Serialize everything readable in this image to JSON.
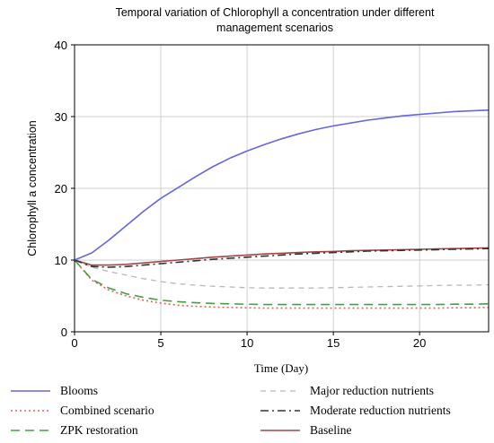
{
  "chart_data": {
    "type": "line",
    "title_line1": "Temporal variation of Chlorophyll  a concentration under different",
    "title_line2": "management scenarios",
    "xlabel": "Time (Day)",
    "ylabel": "Chlorophyll  a concentration",
    "xlim": [
      0,
      24
    ],
    "ylim": [
      0,
      40
    ],
    "xticks": [
      0,
      5,
      10,
      15,
      20
    ],
    "yticks": [
      0,
      10,
      20,
      30,
      40
    ],
    "grid": true,
    "legend_position": "bottom",
    "x": [
      0,
      1,
      2,
      3,
      4,
      5,
      6,
      7,
      8,
      9,
      10,
      11,
      12,
      13,
      14,
      15,
      16,
      17,
      18,
      19,
      20,
      21,
      22,
      23,
      24
    ],
    "series": [
      {
        "name": "Blooms",
        "color": "#6666dd",
        "dash": "solid",
        "values": [
          10,
          11,
          12.8,
          14.8,
          16.8,
          18.6,
          20.1,
          21.6,
          23.0,
          24.2,
          25.2,
          26.1,
          26.9,
          27.6,
          28.2,
          28.7,
          29.1,
          29.5,
          29.8,
          30.1,
          30.3,
          30.5,
          30.7,
          30.8,
          30.9
        ]
      },
      {
        "name": "Combined scenario",
        "color": "#e06060",
        "dash": "dotted",
        "values": [
          10,
          7.2,
          5.8,
          5.0,
          4.4,
          4.0,
          3.7,
          3.55,
          3.45,
          3.4,
          3.35,
          3.3,
          3.3,
          3.3,
          3.3,
          3.3,
          3.3,
          3.3,
          3.3,
          3.3,
          3.3,
          3.3,
          3.35,
          3.35,
          3.4
        ]
      },
      {
        "name": "ZPK restoration",
        "color": "#44a044",
        "dash": "longdash",
        "values": [
          10,
          7.3,
          6.1,
          5.3,
          4.8,
          4.4,
          4.2,
          4.05,
          3.95,
          3.9,
          3.85,
          3.8,
          3.8,
          3.8,
          3.8,
          3.8,
          3.8,
          3.8,
          3.8,
          3.8,
          3.8,
          3.8,
          3.85,
          3.85,
          3.9
        ]
      },
      {
        "name": "Major reduction nutrients",
        "color": "#b8b8b8",
        "dash": "dashed",
        "values": [
          10,
          9.0,
          8.4,
          7.9,
          7.4,
          7.0,
          6.7,
          6.5,
          6.35,
          6.25,
          6.15,
          6.1,
          6.1,
          6.1,
          6.1,
          6.15,
          6.2,
          6.25,
          6.3,
          6.35,
          6.4,
          6.45,
          6.5,
          6.5,
          6.55
        ]
      },
      {
        "name": "Moderate reduction nutrients",
        "color": "#333333",
        "dash": "dashdot",
        "values": [
          10,
          9.1,
          9.0,
          9.1,
          9.3,
          9.5,
          9.7,
          9.9,
          10.1,
          10.25,
          10.4,
          10.55,
          10.7,
          10.85,
          10.95,
          11.05,
          11.15,
          11.25,
          11.3,
          11.35,
          11.4,
          11.45,
          11.5,
          11.55,
          11.6
        ]
      },
      {
        "name": "Baseline",
        "color": "#a04848",
        "dash": "solid",
        "values": [
          10,
          9.3,
          9.3,
          9.4,
          9.6,
          9.8,
          10.0,
          10.2,
          10.4,
          10.55,
          10.7,
          10.85,
          10.95,
          11.05,
          11.15,
          11.2,
          11.3,
          11.35,
          11.4,
          11.45,
          11.5,
          11.55,
          11.6,
          11.65,
          11.7
        ]
      }
    ]
  }
}
